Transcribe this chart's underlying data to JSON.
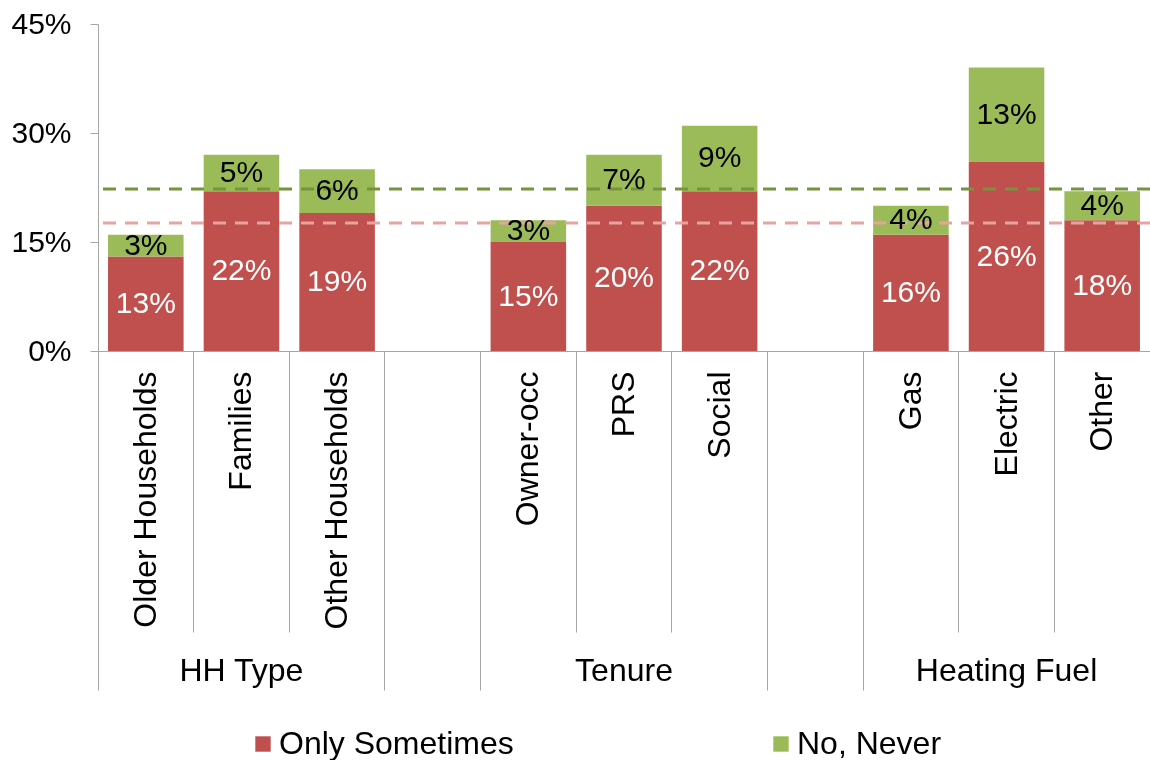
{
  "chart_data": {
    "type": "bar",
    "stacked": true,
    "legend": "bottom",
    "categories": [
      "Older Households",
      "Families",
      "Other Households",
      null,
      "Owner-occ",
      "PRS",
      "Social",
      null,
      "Gas",
      "Electric",
      "Other"
    ],
    "series": [
      {
        "name": "Only Sometimes",
        "color": "#c0504d",
        "values": [
          13,
          22,
          19,
          null,
          15,
          20,
          22,
          null,
          16,
          26,
          18
        ],
        "value_labels": [
          "13%",
          "22%",
          "19%",
          null,
          "15%",
          "20%",
          "22%",
          null,
          "16%",
          "26%",
          "18%"
        ]
      },
      {
        "name": "No, Never",
        "color": "#9bbb59",
        "values": [
          3,
          5,
          6,
          null,
          3,
          7,
          9,
          null,
          4,
          13,
          4
        ],
        "value_labels": [
          "3%",
          "5%",
          "6%",
          null,
          "3%",
          "7%",
          "9%",
          null,
          "4%",
          "13%",
          "4%"
        ]
      }
    ],
    "ylim": [
      0,
      45
    ],
    "yticks": [
      {
        "value": 0,
        "label": "0%"
      },
      {
        "value": 15,
        "label": "15%"
      },
      {
        "value": 30,
        "label": "30%"
      },
      {
        "value": 45,
        "label": "45%"
      }
    ],
    "ref_lines": [
      {
        "axis": "y",
        "value": 22.3,
        "color": "#77933c",
        "line_style": "dashed"
      },
      {
        "axis": "y",
        "value": 17.6,
        "color": "#e6a3a1",
        "line_style": "dashed"
      }
    ],
    "annotations": [
      "HH Type",
      "Tenure",
      "Heating Fuel"
    ]
  }
}
